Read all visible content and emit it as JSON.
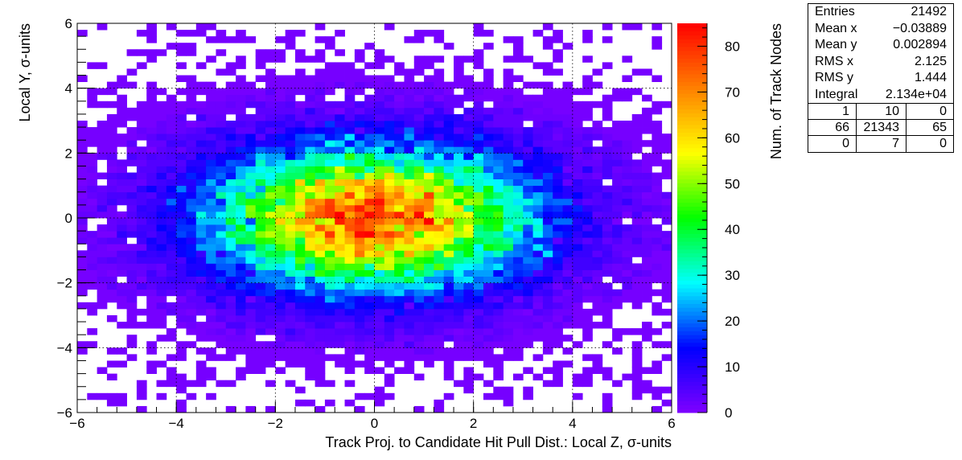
{
  "chart_data": {
    "type": "heatmap",
    "xlabel": "Track Proj. to Candidate Hit Pull Dist.: Local Z, σ-units",
    "ylabel": "Local Y, σ-units",
    "zlabel": "Num. of Track Nodes",
    "xlim": [
      -6,
      6
    ],
    "ylim": [
      -6,
      6
    ],
    "zlim": [
      0,
      85
    ],
    "x_ticks": [
      "−6",
      "−4",
      "−2",
      "0",
      "2",
      "4",
      "6"
    ],
    "y_ticks": [
      "−6",
      "−4",
      "−2",
      "0",
      "2",
      "4",
      "6"
    ],
    "z_ticks": [
      "0",
      "10",
      "20",
      "30",
      "40",
      "50",
      "60",
      "70",
      "80"
    ],
    "grid": true,
    "nbins_x": 60,
    "nbins_y": 60,
    "distribution": {
      "shape": "2D gaussian",
      "mean_x": -0.03889,
      "mean_y": 0.002894,
      "rms_x": 2.125,
      "rms_y": 1.444,
      "entries": 21492,
      "peak_count": 82
    },
    "colormap": [
      "#7f00ff",
      "#0000ff",
      "#00ffff",
      "#00ff00",
      "#ffff00",
      "#ff8000",
      "#ff0000"
    ]
  },
  "stats": {
    "rows": [
      {
        "label": "Entries",
        "value": "21492"
      },
      {
        "label": "Mean x",
        "value": "−0.03889"
      },
      {
        "label": "Mean y",
        "value": "0.002894"
      },
      {
        "label": "RMS x",
        "value": "2.125"
      },
      {
        "label": "RMS y",
        "value": "1.444"
      },
      {
        "label": "Integral",
        "value": "2.134e+04"
      }
    ],
    "grid": [
      [
        "1",
        "10",
        "0"
      ],
      [
        "66",
        "21343",
        "65"
      ],
      [
        "0",
        "7",
        "0"
      ]
    ]
  }
}
